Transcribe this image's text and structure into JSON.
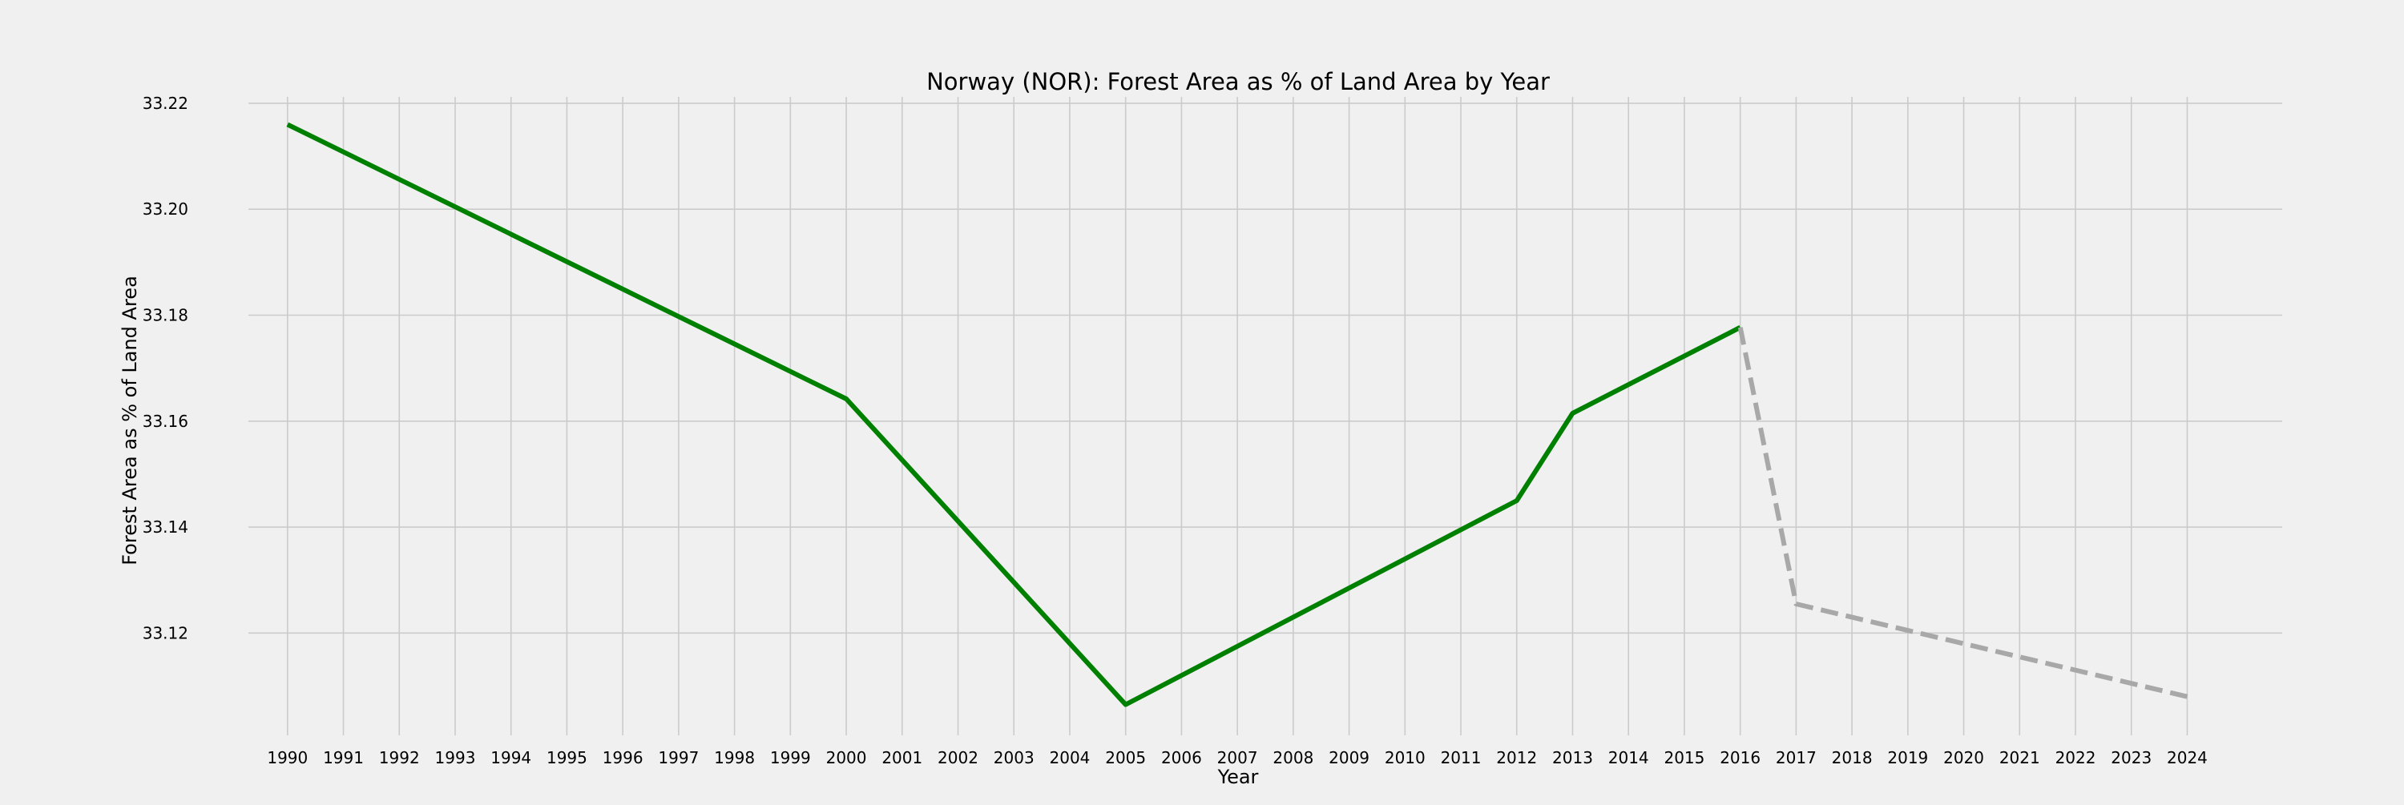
{
  "chart_data": {
    "type": "line",
    "title": "Norway (NOR): Forest Area as % of Land Area by Year",
    "xlabel": "Year",
    "ylabel": "Forest Area as % of Land Area",
    "x_ticks": [
      1990,
      1991,
      1992,
      1993,
      1994,
      1995,
      1996,
      1997,
      1998,
      1999,
      2000,
      2001,
      2002,
      2003,
      2004,
      2005,
      2006,
      2007,
      2008,
      2009,
      2010,
      2011,
      2012,
      2013,
      2014,
      2015,
      2016,
      2017,
      2018,
      2019,
      2020,
      2021,
      2022,
      2023,
      2024
    ],
    "y_ticks": [
      "33.12",
      "33.14",
      "33.16",
      "33.18",
      "33.20",
      "33.22"
    ],
    "xlim": [
      1989.3,
      2025.7
    ],
    "ylim": [
      33.1007,
      33.2212
    ],
    "grid": true,
    "series": [
      {
        "style": "solid",
        "color": "#008000",
        "x": [
          1990,
          2000,
          2005,
          2012,
          2013,
          2016
        ],
        "y": [
          33.216,
          33.1642,
          33.1065,
          33.145,
          33.1615,
          33.1777
        ]
      },
      {
        "style": "dashed",
        "color": "#a8a8a8",
        "x": [
          2016,
          2017,
          2024
        ],
        "y": [
          33.1777,
          33.1255,
          33.108
        ]
      }
    ]
  }
}
